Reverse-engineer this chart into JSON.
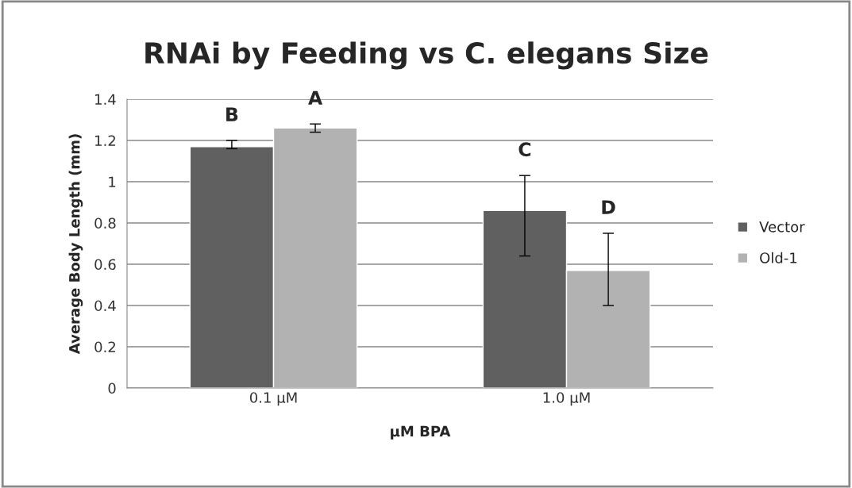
{
  "chart_data": {
    "type": "bar",
    "title": "RNAi by Feeding vs C. elegans Size",
    "xlabel": "µM BPA",
    "ylabel": "Average Body Length (mm)",
    "categories": [
      "0.1 µM",
      "1.0 µM"
    ],
    "series": [
      {
        "name": "Vector",
        "color": "#606060",
        "values": [
          1.17,
          0.86
        ],
        "errors": [
          [
            1.16,
            1.2
          ],
          [
            0.64,
            1.03
          ]
        ]
      },
      {
        "name": "Old-1",
        "color": "#b2b2b2",
        "values": [
          1.26,
          0.57
        ],
        "errors": [
          [
            1.24,
            1.28
          ],
          [
            0.4,
            0.75
          ]
        ]
      }
    ],
    "ylim": [
      0,
      1.4
    ],
    "yticks": [
      0,
      0.2,
      0.4,
      0.6,
      0.8,
      1,
      1.2,
      1.4
    ],
    "grid": "y",
    "legend": "right",
    "annotations": [
      "B",
      "A",
      "C",
      "D"
    ]
  }
}
